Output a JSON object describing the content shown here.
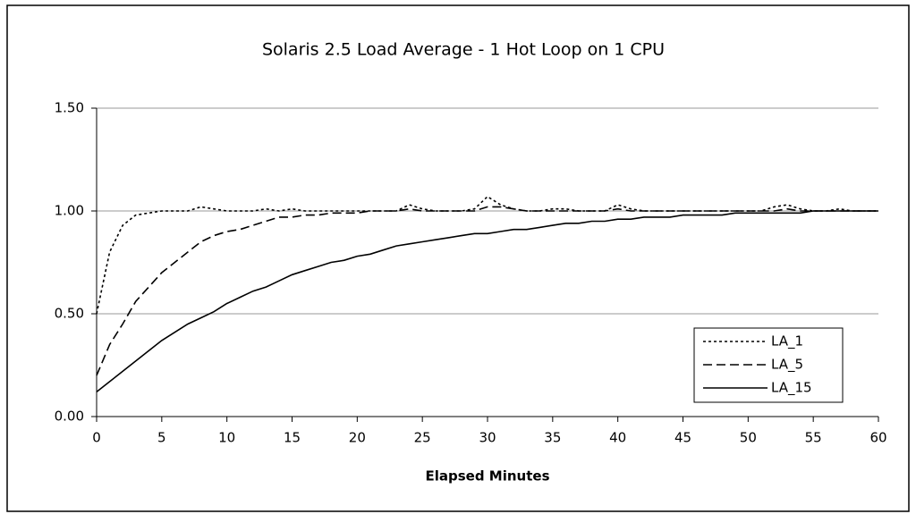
{
  "chart_data": {
    "type": "line",
    "title": "Solaris 2.5 Load Average - 1 Hot Loop on 1 CPU",
    "xlabel": "Elapsed Minutes",
    "x": [
      0,
      1,
      2,
      3,
      4,
      5,
      6,
      7,
      8,
      9,
      10,
      11,
      12,
      13,
      14,
      15,
      16,
      17,
      18,
      19,
      20,
      21,
      22,
      23,
      24,
      25,
      26,
      27,
      28,
      29,
      30,
      31,
      32,
      33,
      34,
      35,
      36,
      37,
      38,
      39,
      40,
      41,
      42,
      43,
      44,
      45,
      46,
      47,
      48,
      49,
      50,
      51,
      52,
      53,
      54,
      55,
      56,
      57,
      58,
      59,
      60
    ],
    "xlim": [
      0,
      60
    ],
    "xticks": [
      0,
      5,
      10,
      15,
      20,
      25,
      30,
      35,
      40,
      45,
      50,
      55,
      60
    ],
    "ylim": [
      0,
      1.5
    ],
    "yticks": [
      {
        "value": 0,
        "label": "0.00"
      },
      {
        "value": 0.5,
        "label": "0.50"
      },
      {
        "value": 1,
        "label": "1.00"
      },
      {
        "value": 1.5,
        "label": "1.50"
      }
    ],
    "grid": true,
    "legend": "lower right",
    "series": [
      {
        "name": "LA_1",
        "color": "#000000",
        "dash": "dotted",
        "values": [
          0.5,
          0.8,
          0.93,
          0.98,
          0.99,
          1,
          1,
          1,
          1.02,
          1.01,
          1,
          1,
          1,
          1.01,
          1,
          1.01,
          1,
          1,
          1,
          1,
          1,
          1,
          1,
          1,
          1.03,
          1.01,
          1,
          1,
          1,
          1.01,
          1.07,
          1.03,
          1.01,
          1,
          1,
          1.01,
          1.01,
          1,
          1,
          1,
          1.03,
          1.01,
          1,
          1,
          1,
          1,
          1,
          1,
          1,
          1,
          1,
          1,
          1.02,
          1.03,
          1.01,
          1,
          1,
          1.01,
          1,
          1,
          1
        ]
      },
      {
        "name": "LA_5",
        "color": "#000000",
        "dash": "dashed",
        "values": [
          0.2,
          0.35,
          0.45,
          0.56,
          0.63,
          0.7,
          0.75,
          0.8,
          0.85,
          0.88,
          0.9,
          0.91,
          0.93,
          0.95,
          0.97,
          0.97,
          0.98,
          0.98,
          0.99,
          0.99,
          0.99,
          1,
          1,
          1,
          1.01,
          1,
          1,
          1,
          1,
          1,
          1.02,
          1.02,
          1.01,
          1,
          1,
          1,
          1,
          1,
          1,
          1,
          1.01,
          1,
          1,
          1,
          1,
          1,
          1,
          1,
          1,
          1,
          1,
          1,
          1,
          1.01,
          1,
          1,
          1,
          1,
          1,
          1,
          1
        ]
      },
      {
        "name": "LA_15",
        "color": "#000000",
        "dash": "solid",
        "values": [
          0.12,
          0.17,
          0.22,
          0.27,
          0.32,
          0.37,
          0.41,
          0.45,
          0.48,
          0.51,
          0.55,
          0.58,
          0.61,
          0.63,
          0.66,
          0.69,
          0.71,
          0.73,
          0.75,
          0.76,
          0.78,
          0.79,
          0.81,
          0.83,
          0.84,
          0.85,
          0.86,
          0.87,
          0.88,
          0.89,
          0.89,
          0.9,
          0.91,
          0.91,
          0.92,
          0.93,
          0.94,
          0.94,
          0.95,
          0.95,
          0.96,
          0.96,
          0.97,
          0.97,
          0.97,
          0.98,
          0.98,
          0.98,
          0.98,
          0.99,
          0.99,
          0.99,
          0.99,
          0.99,
          0.99,
          1,
          1,
          1,
          1,
          1,
          1
        ]
      }
    ]
  }
}
